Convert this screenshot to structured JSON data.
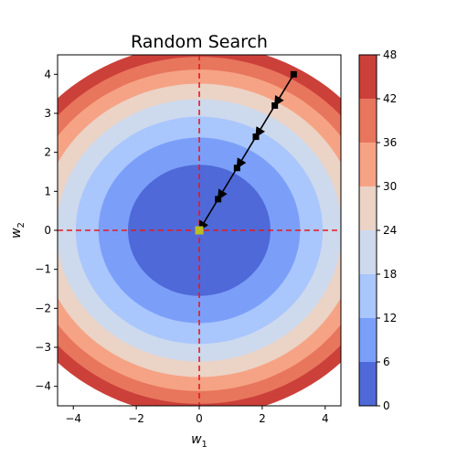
{
  "chart_data": {
    "type": "contour",
    "title": "Random Search",
    "xlabel": {
      "base": "w",
      "sub": "1"
    },
    "ylabel": {
      "base": "w",
      "sub": "2"
    },
    "xlim": [
      -4.5,
      4.5
    ],
    "ylim": [
      -4.5,
      4.5
    ],
    "xticks": [
      -4,
      -2,
      0,
      2,
      4
    ],
    "yticks": [
      -4,
      -3,
      -2,
      -1,
      0,
      1,
      2,
      3,
      4
    ],
    "colorbar": {
      "levels": [
        0,
        6,
        12,
        18,
        24,
        30,
        36,
        42,
        48
      ],
      "colors": [
        "#4f69d9",
        "#7b9ff9",
        "#a9c6fd",
        "#cdd9ec",
        "#ebd3c6",
        "#f6a385",
        "#e8765c",
        "#cc403a"
      ]
    },
    "contour_function": {
      "expression": "a*w1^2 + b*w2^2",
      "a": 1.17,
      "b": 2.12
    },
    "reference_lines": {
      "x": 0,
      "y": 0,
      "color": "#e41a1c",
      "style": "dashed"
    },
    "path": {
      "points": [
        [
          3.0,
          4.0
        ],
        [
          2.4,
          3.2
        ],
        [
          1.8,
          2.4
        ],
        [
          1.2,
          1.6
        ],
        [
          0.6,
          0.8
        ],
        [
          0.0,
          0.0
        ]
      ],
      "color": "#000000",
      "start_marker_color": "#000000",
      "end_marker_color": "#bcbd22"
    }
  }
}
